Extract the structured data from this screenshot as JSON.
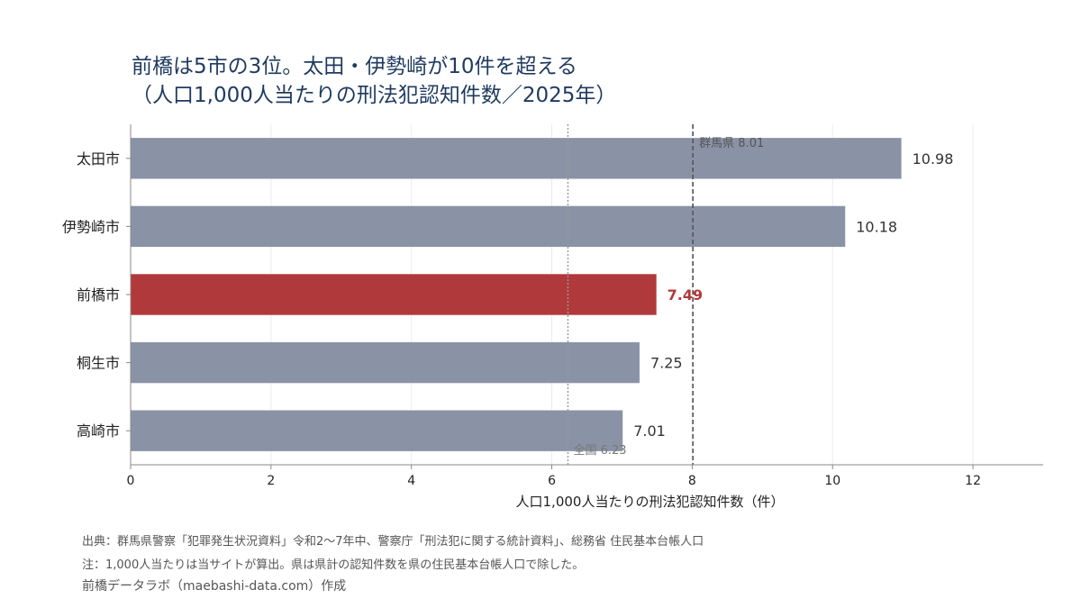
{
  "title": {
    "line1": "前橋は5市の3位。太田・伊勢崎が10件を超える",
    "line2": "（人口1,000人当たりの刑法犯認知件数／2025年）"
  },
  "chart_data": {
    "type": "bar",
    "orientation": "horizontal",
    "categories": [
      "太田市",
      "伊勢崎市",
      "前橋市",
      "桐生市",
      "高崎市"
    ],
    "values": [
      10.98,
      10.18,
      7.49,
      7.25,
      7.01
    ],
    "value_labels": [
      "10.98",
      "10.18",
      "7.49",
      "7.25",
      "7.01"
    ],
    "highlight": "前橋市",
    "xlabel": "人口1,000人当たりの刑法犯認知件数（件）",
    "ylabel": "",
    "xlim": [
      0,
      13
    ],
    "xticks": [
      "0",
      "2",
      "4",
      "6",
      "8",
      "10",
      "12"
    ],
    "grid": "vertical",
    "colors": {
      "bar": "#8a93a6",
      "highlight": "#b0393b",
      "reference": "#555555",
      "axis": "#888888"
    },
    "reference_lines": [
      {
        "label": "群馬県 8.01",
        "value": 8.01,
        "style": "dashed"
      },
      {
        "label": "全国 6.23",
        "value": 6.23,
        "style": "dotted"
      }
    ]
  },
  "footer": {
    "source": "出典：群馬県警察「犯罪発生状況資料」令和2〜7年中、警察庁「刑法犯に関する統計資料」、総務省 住民基本台帳人口",
    "note": "注：1,000人当たりは当サイトが算出。県は県計の認知件数を県の住民基本台帳人口で除した。",
    "credit": "前橋データラボ（maebashi-data.com）作成"
  }
}
